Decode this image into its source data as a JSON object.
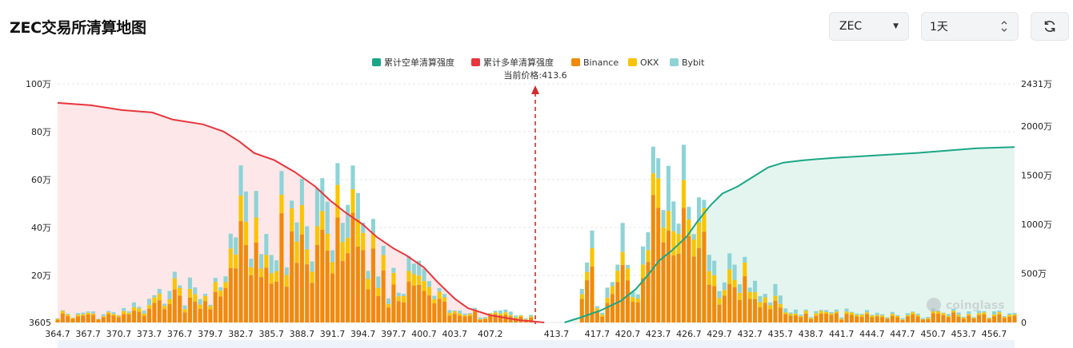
{
  "header": {
    "title": "ZEC交易所清算地图",
    "coin_select": "ZEC",
    "interval_select": "1天"
  },
  "watermark": "coinglass",
  "colors": {
    "short_cum": "#1aa786",
    "long_cum": "#e8363d",
    "binance": "#f08a0c",
    "okx": "#f9c400",
    "bybit": "#8ed3d6"
  },
  "chart_data": {
    "type": "bar",
    "legend": [
      "累计空单清算强度",
      "累计多单清算强度",
      "Binance",
      "OKX",
      "Bybit"
    ],
    "current_price_label": "当前价格:413.6",
    "current_price": 413.6,
    "x_min": 364.7,
    "x_max": 458.7,
    "x_ticks": [
      "364.7",
      "367.7",
      "370.7",
      "373.7",
      "376.7",
      "379.7",
      "382.7",
      "385.7",
      "388.7",
      "391.7",
      "394.7",
      "397.7",
      "400.7",
      "403.7",
      "407.2",
      "413.7",
      "417.7",
      "420.7",
      "423.7",
      "426.7",
      "429.7",
      "432.7",
      "435.7",
      "438.7",
      "441.7",
      "444.7",
      "447.7",
      "450.7",
      "453.7",
      "456.7"
    ],
    "left_axis": {
      "labels": [
        "3605",
        "20万",
        "40万",
        "60万",
        "80万",
        "100万"
      ],
      "min": 3605,
      "max": 1000000
    },
    "right_axis": {
      "labels": [
        "0",
        "500万",
        "1000万",
        "1500万",
        "2000万",
        "2431万"
      ],
      "min": 0,
      "max": 24310000
    },
    "grid": true,
    "legend_position": "top-center"
  }
}
